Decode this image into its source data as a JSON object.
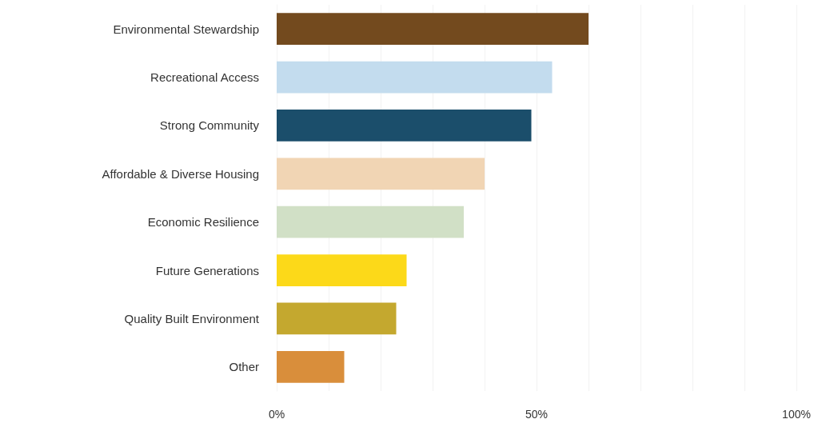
{
  "chart_data": {
    "type": "bar",
    "orientation": "horizontal",
    "categories": [
      "Environmental Stewardship",
      "Recreational Access",
      "Strong Community",
      "Affordable & Diverse Housing",
      "Economic Resilience",
      "Future Generations",
      "Quality Built Environment",
      "Other"
    ],
    "values": [
      60,
      53,
      49,
      40,
      36,
      25,
      23,
      13
    ],
    "colors": [
      "#734a1e",
      "#c3dcee",
      "#1b4e6b",
      "#f1d5b4",
      "#d1e0c6",
      "#fcd919",
      "#c4a82f",
      "#d98e3b"
    ],
    "xlim": [
      0,
      100
    ],
    "xticks": [
      {
        "value": 0,
        "label": "0%"
      },
      {
        "value": 10,
        "label": null
      },
      {
        "value": 20,
        "label": null
      },
      {
        "value": 30,
        "label": null
      },
      {
        "value": 40,
        "label": null
      },
      {
        "value": 50,
        "label": "50%"
      },
      {
        "value": 60,
        "label": null
      },
      {
        "value": 70,
        "label": null
      },
      {
        "value": 80,
        "label": null
      },
      {
        "value": 90,
        "label": null
      },
      {
        "value": 100,
        "label": "100%"
      }
    ],
    "grid": "x"
  }
}
